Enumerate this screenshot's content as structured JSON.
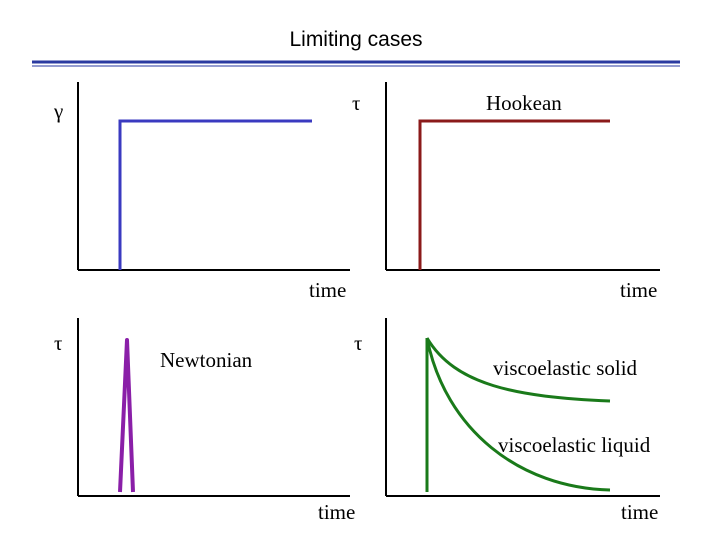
{
  "title": "Limiting cases",
  "colors": {
    "rule": "#2a3aa0",
    "strain": "#3a3ac0",
    "hookean": "#8b1a1a",
    "newtonian": "#8a1fa8",
    "viscoelastic": "#1a7a1a",
    "axis": "#000000"
  },
  "panels": {
    "strain": {
      "y_symbol": "γ",
      "x_label": "time"
    },
    "hookean": {
      "y_symbol": "τ",
      "curve_label": "Hookean",
      "x_label": "time"
    },
    "newtonian": {
      "y_symbol": "τ",
      "curve_label": "Newtonian",
      "x_label": "time"
    },
    "viscoelastic": {
      "y_symbol": "τ",
      "solid_label": "viscoelastic solid",
      "liquid_label": "viscoelastic liquid",
      "x_label": "time"
    }
  }
}
